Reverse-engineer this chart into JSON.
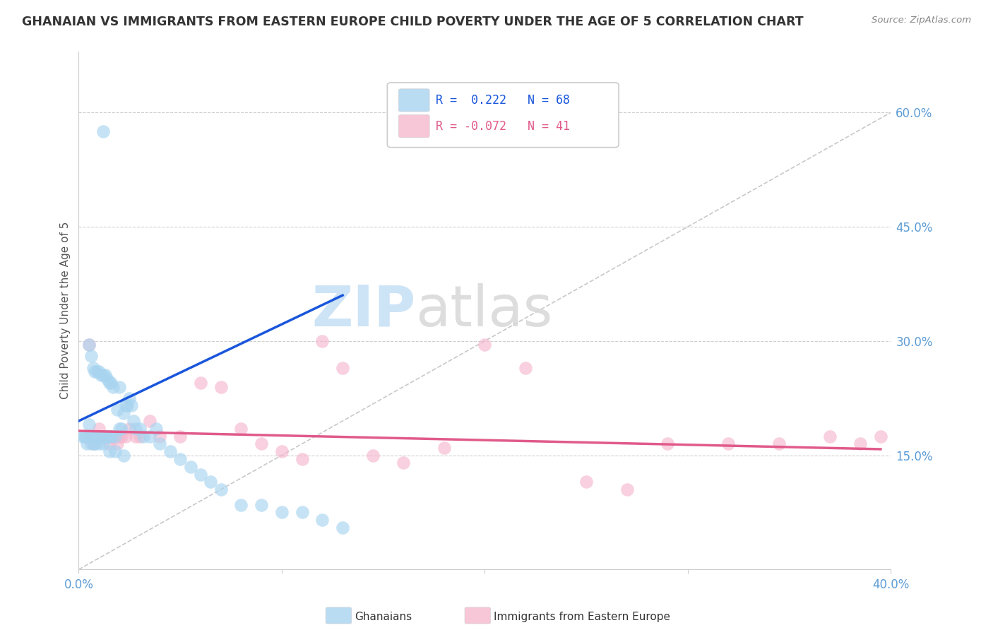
{
  "title": "GHANAIAN VS IMMIGRANTS FROM EASTERN EUROPE CHILD POVERTY UNDER THE AGE OF 5 CORRELATION CHART",
  "source": "Source: ZipAtlas.com",
  "ylabel": "Child Poverty Under the Age of 5",
  "xlim": [
    0.0,
    0.4
  ],
  "ylim": [
    0.0,
    0.68
  ],
  "x_ticks": [
    0.0,
    0.1,
    0.2,
    0.3,
    0.4
  ],
  "x_tick_labels": [
    "0.0%",
    "",
    "",
    "",
    "40.0%"
  ],
  "y_ticks_right": [
    0.15,
    0.3,
    0.45,
    0.6
  ],
  "y_tick_labels_right": [
    "15.0%",
    "30.0%",
    "45.0%",
    "60.0%"
  ],
  "blue_color": "#a8d4f0",
  "pink_color": "#f5b8ce",
  "line_blue": "#1a56db",
  "line_pink": "#e05a8a",
  "line_dashed_color": "#bbbbbb",
  "watermark_zip": "ZIP",
  "watermark_atlas": "atlas",
  "ghanaians_x": [
    0.003,
    0.004,
    0.005,
    0.005,
    0.006,
    0.006,
    0.007,
    0.007,
    0.008,
    0.008,
    0.008,
    0.009,
    0.009,
    0.01,
    0.01,
    0.01,
    0.011,
    0.011,
    0.012,
    0.012,
    0.013,
    0.013,
    0.014,
    0.014,
    0.015,
    0.015,
    0.016,
    0.016,
    0.017,
    0.018,
    0.019,
    0.02,
    0.02,
    0.021,
    0.022,
    0.023,
    0.024,
    0.025,
    0.026,
    0.027,
    0.028,
    0.03,
    0.032,
    0.035,
    0.038,
    0.04,
    0.045,
    0.05,
    0.055,
    0.06,
    0.065,
    0.07,
    0.08,
    0.09,
    0.1,
    0.11,
    0.12,
    0.13,
    0.002,
    0.003,
    0.004,
    0.006,
    0.008,
    0.01,
    0.012,
    0.015,
    0.018,
    0.022
  ],
  "ghanaians_y": [
    0.175,
    0.165,
    0.19,
    0.295,
    0.175,
    0.28,
    0.175,
    0.265,
    0.175,
    0.26,
    0.165,
    0.175,
    0.26,
    0.175,
    0.26,
    0.175,
    0.175,
    0.255,
    0.175,
    0.255,
    0.175,
    0.255,
    0.175,
    0.25,
    0.175,
    0.245,
    0.175,
    0.245,
    0.24,
    0.175,
    0.21,
    0.185,
    0.24,
    0.185,
    0.205,
    0.215,
    0.215,
    0.225,
    0.215,
    0.195,
    0.185,
    0.185,
    0.175,
    0.175,
    0.185,
    0.165,
    0.155,
    0.145,
    0.135,
    0.125,
    0.115,
    0.105,
    0.085,
    0.085,
    0.075,
    0.075,
    0.065,
    0.055,
    0.175,
    0.175,
    0.175,
    0.165,
    0.165,
    0.165,
    0.165,
    0.155,
    0.155,
    0.15
  ],
  "ghanaians_highlight_x": [
    0.012
  ],
  "ghanaians_highlight_y": [
    0.575
  ],
  "eastern_x": [
    0.005,
    0.007,
    0.009,
    0.011,
    0.013,
    0.015,
    0.017,
    0.019,
    0.021,
    0.023,
    0.025,
    0.028,
    0.03,
    0.035,
    0.04,
    0.05,
    0.06,
    0.07,
    0.08,
    0.09,
    0.1,
    0.11,
    0.12,
    0.13,
    0.145,
    0.16,
    0.18,
    0.2,
    0.22,
    0.25,
    0.27,
    0.29,
    0.32,
    0.345,
    0.37,
    0.385,
    0.395,
    0.005,
    0.01,
    0.015,
    0.02
  ],
  "eastern_y": [
    0.175,
    0.165,
    0.175,
    0.175,
    0.175,
    0.165,
    0.175,
    0.165,
    0.175,
    0.175,
    0.185,
    0.175,
    0.175,
    0.195,
    0.175,
    0.175,
    0.245,
    0.24,
    0.185,
    0.165,
    0.155,
    0.145,
    0.3,
    0.265,
    0.15,
    0.14,
    0.16,
    0.295,
    0.265,
    0.115,
    0.105,
    0.165,
    0.165,
    0.165,
    0.175,
    0.165,
    0.175,
    0.295,
    0.185,
    0.175,
    0.175
  ],
  "blue_regline_x": [
    0.0,
    0.13
  ],
  "blue_regline_y": [
    0.195,
    0.36
  ],
  "pink_regline_x": [
    0.0,
    0.395
  ],
  "pink_regline_y": [
    0.182,
    0.158
  ],
  "diag_line_x": [
    0.0,
    0.4
  ],
  "diag_line_y": [
    0.0,
    0.6
  ],
  "hlines": [
    0.15,
    0.3,
    0.45,
    0.6
  ]
}
